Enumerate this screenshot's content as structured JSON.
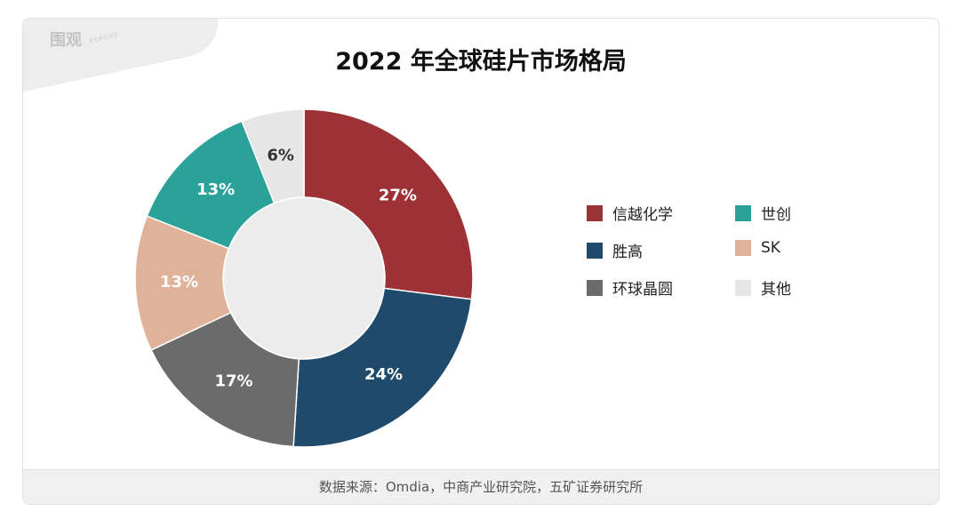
{
  "watermark": {
    "mark": "围观",
    "sub": "REPORT"
  },
  "chart_data": {
    "type": "pie",
    "donut": true,
    "title": "2022 年全球硅片市场格局",
    "categories": [
      "信越化学",
      "胜高",
      "环球晶圆",
      "SK",
      "世创",
      "其他"
    ],
    "values": [
      27,
      24,
      17,
      13,
      13,
      6
    ],
    "labels": [
      "27%",
      "24%",
      "17%",
      "13%",
      "13%",
      "6%"
    ],
    "colors": [
      "#9c3236",
      "#1f4a6b",
      "#6b6b6b",
      "#e0b29a",
      "#2aa199",
      "#e6e6e6"
    ],
    "legend_position": "right",
    "legend": [
      {
        "label": "信越化学",
        "color": "#9c3236"
      },
      {
        "label": "世创",
        "color": "#2aa199"
      },
      {
        "label": "胜高",
        "color": "#1f4a6b"
      },
      {
        "label": "SK",
        "color": "#e0b29a"
      },
      {
        "label": "环球晶圆",
        "color": "#6b6b6b"
      },
      {
        "label": "其他",
        "color": "#e6e6e6"
      }
    ]
  },
  "footer": {
    "source": "数据来源：Omdia，中商产业研究院，五矿证券研究所"
  }
}
